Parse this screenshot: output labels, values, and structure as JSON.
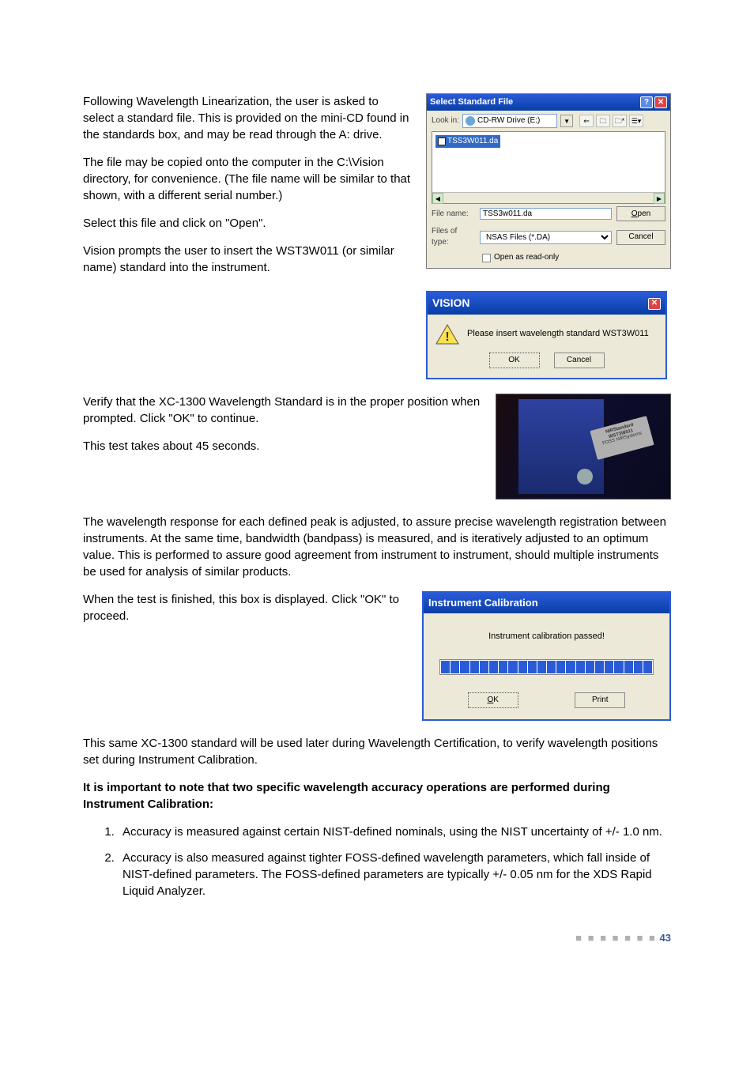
{
  "para1": "Following Wavelength Linearization, the user is asked to select a standard file. This is provided on the mini-CD found in the standards box, and may be read through the A: drive.",
  "para2": "The file may be copied onto the computer in the C:\\Vision directory, for convenience. (The file name will be similar to that shown, with a different serial number.)",
  "para3": "Select this file and click on \"Open\".",
  "para4": "Vision prompts the user to insert the WST3W011 (or similar name) standard into the instrument.",
  "para5a": "Verify that the XC-1300 Wavelength Standard is in the proper position when prompted. Click \"OK\" to continue.",
  "para5b": "This test takes about 45 seconds.",
  "para6": "The wavelength response for each defined peak is adjusted, to assure precise wavelength registration between instruments. At the same time, bandwidth (bandpass) is measured, and is iteratively adjusted to an optimum value. This is performed to assure good agreement from instrument to instrument, should multiple instruments be used for analysis of similar products.",
  "para7": "When the test is finished, this box is displayed. Click \"OK\" to proceed.",
  "para8": "This same XC-1300 standard will be used later during Wavelength Certification, to verify wavelength positions set during Instrument Calibration.",
  "boldpara": "It is important to note that two specific wavelength accuracy operations are performed during Instrument Calibration:",
  "li1": "Accuracy is measured against certain NIST-defined nominals, using the NIST uncertainty of +/- 1.0 nm.",
  "li2": "Accuracy is also measured against tighter FOSS-defined wavelength parameters, which fall inside of NIST-defined parameters. The FOSS-defined parameters are typically +/- 0.05 nm for the XDS Rapid Liquid Analyzer.",
  "filedlg": {
    "title": "Select Standard File",
    "lookin_label": "Look in:",
    "lookin_value": "CD-RW Drive (E:)",
    "file_item": "TSS3W011.da",
    "filename_label": "File name:",
    "filename_value": "TSS3w011.da",
    "filetype_label": "Files of type:",
    "filetype_value": "NSAS Files (*.DA)",
    "readonly_label": "Open as read-only",
    "open_btn": "Open",
    "cancel_btn": "Cancel"
  },
  "msgbox": {
    "title": "VISION",
    "message": "Please insert wavelength standard WST3W011",
    "ok": "OK",
    "cancel": "Cancel"
  },
  "photo": {
    "label_l1": "NIRStandard",
    "label_l2": "WST3W011",
    "label_l3": "FOSS NIRSystems"
  },
  "caldlg": {
    "title": "Instrument Calibration",
    "message": "Instrument calibration passed!",
    "ok": "OK",
    "print": "Print",
    "segments": 22
  },
  "footer": {
    "dots": "■ ■ ■ ■ ■ ■ ■",
    "page": "43"
  }
}
